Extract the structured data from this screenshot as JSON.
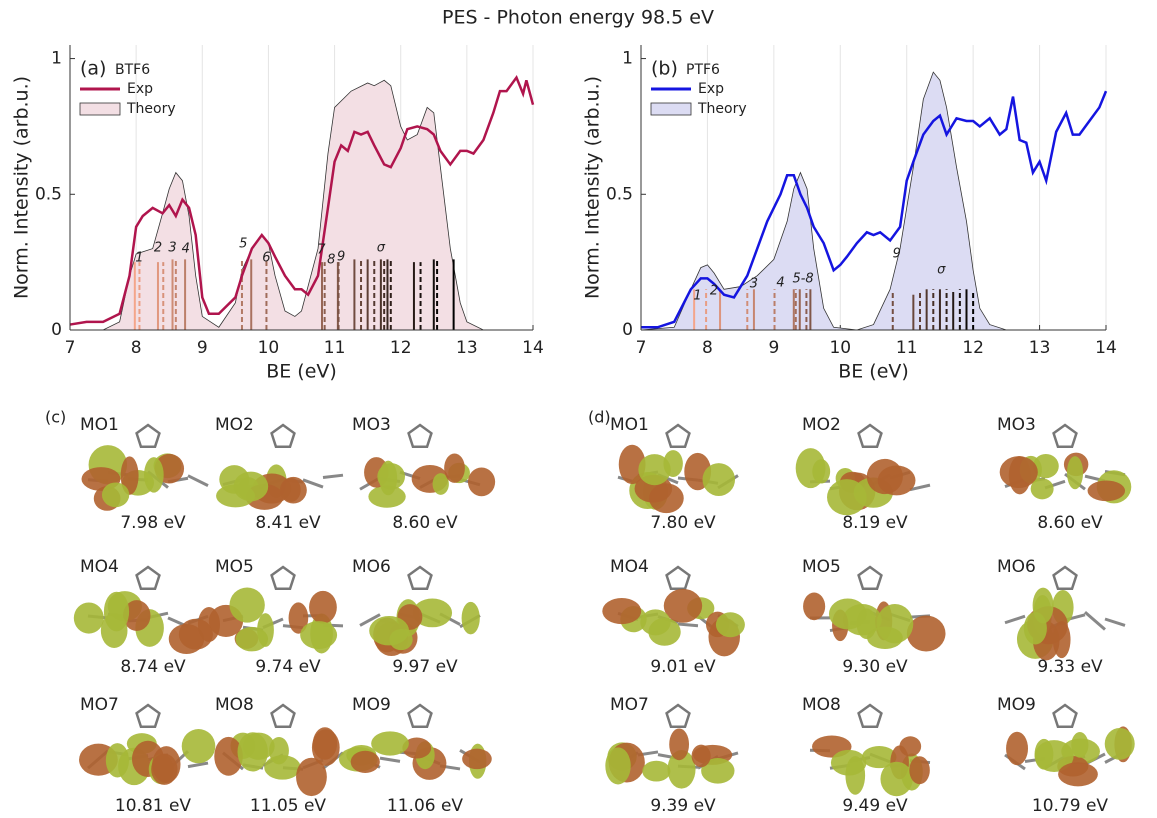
{
  "title": "PES - Photon energy 98.5 eV",
  "chart_data": [
    {
      "type": "line",
      "panel_label": "(a)",
      "sample": "BTF6",
      "xlabel": "BE (eV)",
      "ylabel": "Norm. Intensity (arb.u.)",
      "xlim": [
        7,
        14
      ],
      "ylim": [
        0,
        1.05
      ],
      "xticks": [
        7,
        8,
        9,
        10,
        11,
        12,
        13,
        14
      ],
      "yticks": [
        0,
        0.5,
        1
      ],
      "grid": true,
      "series": [
        {
          "name": "Exp",
          "color": "#b0154d",
          "x": [
            7,
            7.25,
            7.5,
            7.75,
            7.9,
            8,
            8.1,
            8.25,
            8.4,
            8.5,
            8.6,
            8.7,
            8.8,
            8.9,
            9,
            9.1,
            9.25,
            9.5,
            9.6,
            9.75,
            9.9,
            10,
            10.1,
            10.25,
            10.4,
            10.5,
            10.6,
            10.75,
            10.9,
            11,
            11.1,
            11.2,
            11.3,
            11.4,
            11.5,
            11.6,
            11.75,
            11.85,
            12,
            12.1,
            12.25,
            12.4,
            12.5,
            12.6,
            12.75,
            12.9,
            13,
            13.1,
            13.25,
            13.4,
            13.5,
            13.6,
            13.75,
            13.85,
            13.9,
            14
          ],
          "values": [
            0.02,
            0.03,
            0.03,
            0.06,
            0.2,
            0.38,
            0.42,
            0.45,
            0.43,
            0.46,
            0.42,
            0.48,
            0.45,
            0.35,
            0.12,
            0.06,
            0.06,
            0.12,
            0.2,
            0.3,
            0.35,
            0.32,
            0.27,
            0.2,
            0.15,
            0.15,
            0.13,
            0.2,
            0.45,
            0.62,
            0.68,
            0.66,
            0.73,
            0.72,
            0.73,
            0.68,
            0.61,
            0.6,
            0.67,
            0.74,
            0.75,
            0.74,
            0.72,
            0.66,
            0.61,
            0.66,
            0.66,
            0.65,
            0.7,
            0.8,
            0.88,
            0.88,
            0.93,
            0.87,
            0.92,
            0.83
          ]
        },
        {
          "name": "Theory",
          "color": "#f3dfe4",
          "x": [
            7,
            7.5,
            7.75,
            7.9,
            8,
            8.25,
            8.4,
            8.5,
            8.6,
            8.7,
            8.8,
            8.9,
            9,
            9.25,
            9.5,
            9.6,
            9.75,
            9.9,
            10,
            10.1,
            10.25,
            10.4,
            10.5,
            10.75,
            10.9,
            11,
            11.25,
            11.5,
            11.6,
            11.75,
            11.85,
            12,
            12.1,
            12.25,
            12.4,
            12.5,
            12.6,
            12.75,
            12.9,
            13,
            13.25,
            14
          ],
          "values": [
            0,
            0,
            0.03,
            0.2,
            0.28,
            0.3,
            0.43,
            0.52,
            0.58,
            0.55,
            0.42,
            0.2,
            0.05,
            0.01,
            0.1,
            0.22,
            0.3,
            0.35,
            0.32,
            0.2,
            0.07,
            0.05,
            0.07,
            0.3,
            0.65,
            0.82,
            0.88,
            0.91,
            0.9,
            0.92,
            0.9,
            0.75,
            0.7,
            0.72,
            0.82,
            0.8,
            0.6,
            0.3,
            0.1,
            0.03,
            0,
            0
          ]
        }
      ],
      "sticks": {
        "stick_color_range": [
          "#f4a58a",
          "#000000"
        ],
        "x": [
          7.98,
          8.05,
          8.33,
          8.41,
          8.55,
          8.6,
          8.74,
          9.6,
          9.74,
          9.97,
          10.81,
          10.85,
          11.05,
          11.06,
          11.3,
          11.4,
          11.5,
          11.6,
          11.7,
          11.75,
          11.8,
          11.85,
          12.2,
          12.3,
          12.5,
          12.55,
          12.8
        ],
        "values": [
          0.25,
          0.25,
          0.25,
          0.25,
          0.26,
          0.26,
          0.26,
          0.26,
          0.26,
          0.26,
          0.25,
          0.25,
          0.25,
          0.25,
          0.26,
          0.26,
          0.26,
          0.26,
          0.26,
          0.26,
          0.26,
          0.26,
          0.25,
          0.25,
          0.26,
          0.26,
          0.26
        ]
      },
      "annotations": [
        "1",
        "2",
        "3",
        "4",
        "5",
        "6",
        "7",
        "8",
        "9",
        "σ"
      ]
    },
    {
      "type": "line",
      "panel_label": "(b)",
      "sample": "PTF6",
      "xlabel": "BE (eV)",
      "ylabel": "Norm. Intensity (arb.u.)",
      "xlim": [
        7,
        14
      ],
      "ylim": [
        0,
        1.05
      ],
      "xticks": [
        7,
        8,
        9,
        10,
        11,
        12,
        13,
        14
      ],
      "yticks": [
        0,
        0.5,
        1
      ],
      "grid": true,
      "series": [
        {
          "name": "Exp",
          "color": "#1515e0",
          "x": [
            7,
            7.25,
            7.5,
            7.75,
            7.9,
            8,
            8.1,
            8.25,
            8.4,
            8.5,
            8.6,
            8.75,
            8.9,
            9,
            9.1,
            9.2,
            9.3,
            9.4,
            9.5,
            9.6,
            9.75,
            9.9,
            10,
            10.1,
            10.25,
            10.4,
            10.5,
            10.6,
            10.75,
            10.9,
            11,
            11.1,
            11.25,
            11.4,
            11.5,
            11.6,
            11.75,
            11.9,
            12,
            12.1,
            12.25,
            12.4,
            12.5,
            12.6,
            12.7,
            12.8,
            12.9,
            13,
            13.1,
            13.25,
            13.4,
            13.5,
            13.6,
            13.75,
            13.9,
            14
          ],
          "values": [
            0.01,
            0.01,
            0.03,
            0.15,
            0.19,
            0.19,
            0.17,
            0.13,
            0.12,
            0.16,
            0.2,
            0.3,
            0.4,
            0.45,
            0.5,
            0.57,
            0.57,
            0.5,
            0.45,
            0.38,
            0.32,
            0.22,
            0.24,
            0.27,
            0.32,
            0.36,
            0.35,
            0.36,
            0.33,
            0.38,
            0.55,
            0.62,
            0.72,
            0.77,
            0.79,
            0.72,
            0.78,
            0.77,
            0.77,
            0.75,
            0.78,
            0.72,
            0.74,
            0.86,
            0.7,
            0.69,
            0.58,
            0.62,
            0.55,
            0.73,
            0.8,
            0.72,
            0.72,
            0.77,
            0.82,
            0.88
          ]
        },
        {
          "name": "Theory",
          "color": "#dcdcf3",
          "x": [
            7,
            7.5,
            7.75,
            7.9,
            8,
            8.1,
            8.25,
            8.5,
            8.75,
            9,
            9.2,
            9.3,
            9.4,
            9.5,
            9.6,
            9.75,
            9.9,
            10.25,
            10.5,
            10.75,
            10.9,
            11,
            11.1,
            11.25,
            11.4,
            11.5,
            11.6,
            11.75,
            11.9,
            12,
            12.1,
            12.25,
            12.5,
            14
          ],
          "values": [
            0,
            0.01,
            0.15,
            0.23,
            0.24,
            0.21,
            0.15,
            0.16,
            0.2,
            0.26,
            0.4,
            0.52,
            0.58,
            0.52,
            0.3,
            0.08,
            0.01,
            0,
            0.02,
            0.15,
            0.3,
            0.45,
            0.6,
            0.85,
            0.95,
            0.92,
            0.82,
            0.6,
            0.4,
            0.22,
            0.08,
            0.02,
            0,
            0
          ]
        }
      ],
      "sticks": {
        "stick_color_range": [
          "#f4a58a",
          "#000000"
        ],
        "x": [
          7.8,
          7.98,
          8.19,
          8.6,
          8.7,
          9.01,
          9.3,
          9.33,
          9.39,
          9.49,
          9.55,
          10.79,
          11.1,
          11.2,
          11.3,
          11.4,
          11.5,
          11.6,
          11.7,
          11.8,
          11.9,
          12
        ],
        "values": [
          0.15,
          0.15,
          0.15,
          0.15,
          0.15,
          0.15,
          0.15,
          0.15,
          0.15,
          0.15,
          0.15,
          0.14,
          0.13,
          0.14,
          0.15,
          0.15,
          0.15,
          0.15,
          0.14,
          0.15,
          0.15,
          0.14
        ]
      },
      "annotations": [
        "1",
        "2",
        "3",
        "4",
        "5-8",
        "9",
        "σ"
      ]
    }
  ],
  "orbitals": [
    {
      "label": "(c)",
      "items": [
        {
          "name": "MO1",
          "energy": "7.98 eV",
          "color": "#f4a58a"
        },
        {
          "name": "MO2",
          "energy": "8.41 eV",
          "color": "#e0806e"
        },
        {
          "name": "MO3",
          "energy": "8.60 eV",
          "color": "#d86a68"
        },
        {
          "name": "MO4",
          "energy": "8.74 eV",
          "color": "#c85a6a"
        },
        {
          "name": "MO5",
          "energy": "9.74 eV",
          "color": "#a0406e"
        },
        {
          "name": "MO6",
          "energy": "9.97 eV",
          "color": "#7a3a7a"
        },
        {
          "name": "MO7",
          "energy": "10.81 eV",
          "color": "#6a3a80"
        },
        {
          "name": "MO8",
          "energy": "11.05 eV",
          "color": "#5a3a7a"
        },
        {
          "name": "MO9",
          "energy": "11.06 eV",
          "color": "#202040"
        }
      ]
    },
    {
      "label": "(d)",
      "items": [
        {
          "name": "MO1",
          "energy": "7.80 eV",
          "color": "#f4a58a"
        },
        {
          "name": "MO2",
          "energy": "8.19 eV",
          "color": "#e0806e"
        },
        {
          "name": "MO3",
          "energy": "8.60 eV",
          "color": "#d86a68"
        },
        {
          "name": "MO4",
          "energy": "9.01 eV",
          "color": "#c85a6a"
        },
        {
          "name": "MO5",
          "energy": "9.30 eV",
          "color": "#a0406e"
        },
        {
          "name": "MO6",
          "energy": "9.33 eV",
          "color": "#7a3a7a"
        },
        {
          "name": "MO7",
          "energy": "9.39 eV",
          "color": "#6a3a80"
        },
        {
          "name": "MO8",
          "energy": "9.49 eV",
          "color": "#5a3a7a"
        },
        {
          "name": "MO9",
          "energy": "10.79 eV",
          "color": "#202040"
        }
      ]
    }
  ]
}
